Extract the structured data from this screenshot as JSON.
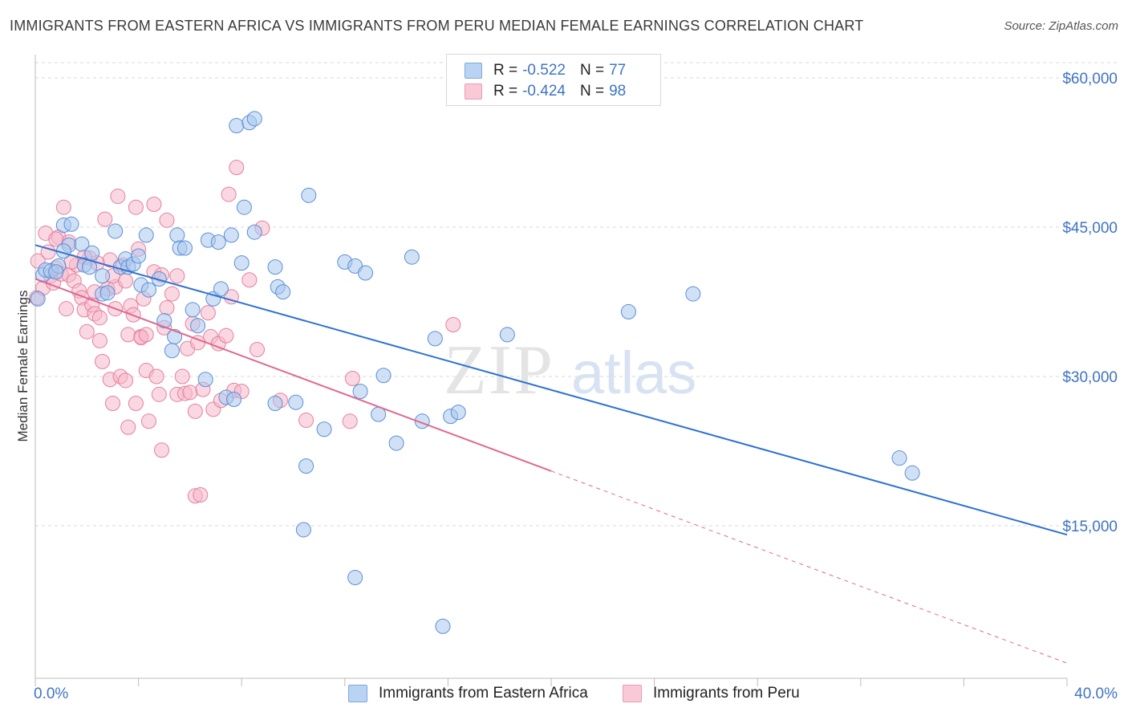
{
  "title": "IMMIGRANTS FROM EASTERN AFRICA VS IMMIGRANTS FROM PERU MEDIAN FEMALE EARNINGS CORRELATION CHART",
  "source": "Source: ZipAtlas.com",
  "watermark": {
    "zip": "ZIP",
    "atlas": "atlas"
  },
  "legend": {
    "series1": {
      "r_label": "R =",
      "r_value": "-0.522",
      "n_label": "N =",
      "n_value": "77"
    },
    "series2": {
      "r_label": "R =",
      "r_value": "-0.424",
      "n_label": "N =",
      "n_value": "98"
    }
  },
  "colors": {
    "series1_fill": "#a9c8ee",
    "series1_stroke": "#5b8fd6",
    "series1_line": "#2e72d2",
    "series2_fill": "#f6b8cb",
    "series2_stroke": "#e57fa0",
    "series2_line": "#e06890",
    "axis_text": "#3f74c4",
    "grid": "#d9d9d9"
  },
  "chart_data": {
    "type": "scatter",
    "ylabel": "Median Female Earnings",
    "xlim": [
      0,
      40
    ],
    "ylim": [
      0,
      60000
    ],
    "x_tick_labels": [
      "0.0%",
      "40.0%"
    ],
    "y_ticks": [
      {
        "value": 15000,
        "label": "$15,000"
      },
      {
        "value": 30000,
        "label": "$30,000"
      },
      {
        "value": 45000,
        "label": "$45,000"
      },
      {
        "value": 60000,
        "label": "$60,000"
      }
    ],
    "grid": true,
    "legend_position": "top-center",
    "series": [
      {
        "name": "Immigrants from Eastern Africa",
        "trend": {
          "x0": 0,
          "y0": 43200,
          "x1": 40,
          "y1": 14100
        },
        "points": [
          [
            0.1,
            37800
          ],
          [
            0.3,
            40200
          ],
          [
            0.4,
            40700
          ],
          [
            0.6,
            40600
          ],
          [
            0.9,
            41100
          ],
          [
            0.8,
            40500
          ],
          [
            1.1,
            45200
          ],
          [
            1.4,
            45300
          ],
          [
            1.3,
            43200
          ],
          [
            1.1,
            42600
          ],
          [
            1.8,
            43300
          ],
          [
            1.9,
            41200
          ],
          [
            2.2,
            42400
          ],
          [
            2.1,
            41000
          ],
          [
            2.6,
            38300
          ],
          [
            2.6,
            40100
          ],
          [
            2.8,
            38400
          ],
          [
            3.1,
            44600
          ],
          [
            3.3,
            41000
          ],
          [
            3.5,
            41800
          ],
          [
            3.6,
            41000
          ],
          [
            3.8,
            41300
          ],
          [
            4.0,
            42100
          ],
          [
            4.1,
            39200
          ],
          [
            4.3,
            44200
          ],
          [
            4.4,
            38700
          ],
          [
            4.8,
            39800
          ],
          [
            5.0,
            35600
          ],
          [
            5.3,
            32600
          ],
          [
            5.4,
            34000
          ],
          [
            5.5,
            44200
          ],
          [
            5.6,
            42900
          ],
          [
            5.8,
            42900
          ],
          [
            6.1,
            36700
          ],
          [
            6.3,
            35100
          ],
          [
            6.6,
            29700
          ],
          [
            6.7,
            43700
          ],
          [
            6.9,
            37800
          ],
          [
            7.1,
            43500
          ],
          [
            7.2,
            38800
          ],
          [
            7.4,
            27900
          ],
          [
            7.6,
            44200
          ],
          [
            7.7,
            27700
          ],
          [
            7.8,
            55200
          ],
          [
            8.0,
            41400
          ],
          [
            8.1,
            47000
          ],
          [
            8.3,
            55500
          ],
          [
            8.5,
            55900
          ],
          [
            8.5,
            44500
          ],
          [
            9.3,
            41000
          ],
          [
            9.3,
            27300
          ],
          [
            9.4,
            39000
          ],
          [
            9.6,
            38500
          ],
          [
            10.1,
            27400
          ],
          [
            10.4,
            14600
          ],
          [
            10.5,
            21000
          ],
          [
            10.6,
            48200
          ],
          [
            11.2,
            24700
          ],
          [
            12.0,
            41500
          ],
          [
            12.4,
            41100
          ],
          [
            12.4,
            9800
          ],
          [
            12.6,
            28500
          ],
          [
            12.8,
            40400
          ],
          [
            13.3,
            26200
          ],
          [
            13.5,
            30100
          ],
          [
            14.0,
            23300
          ],
          [
            15.0,
            25500
          ],
          [
            15.5,
            33800
          ],
          [
            15.8,
            4900
          ],
          [
            16.1,
            26000
          ],
          [
            16.4,
            26400
          ],
          [
            18.3,
            34200
          ],
          [
            23.0,
            36500
          ],
          [
            25.5,
            38300
          ],
          [
            33.5,
            21800
          ],
          [
            34.0,
            20300
          ],
          [
            14.6,
            42000
          ]
        ]
      },
      {
        "name": "Immigrants from Peru",
        "trend": {
          "x0": 0,
          "y0": 39800,
          "x1": 20,
          "y1": 20500,
          "dash_x1": 40,
          "dash_y1": 1200
        },
        "points": [
          [
            0.05,
            37900
          ],
          [
            0.1,
            41600
          ],
          [
            0.3,
            38900
          ],
          [
            0.4,
            44400
          ],
          [
            0.5,
            42500
          ],
          [
            0.6,
            40100
          ],
          [
            0.7,
            39400
          ],
          [
            0.8,
            40900
          ],
          [
            0.9,
            44000
          ],
          [
            1.0,
            40300
          ],
          [
            1.1,
            47000
          ],
          [
            1.2,
            36800
          ],
          [
            1.3,
            43500
          ],
          [
            1.3,
            40200
          ],
          [
            1.5,
            39600
          ],
          [
            1.6,
            41200
          ],
          [
            1.7,
            38600
          ],
          [
            1.8,
            37900
          ],
          [
            1.9,
            36700
          ],
          [
            2.0,
            34500
          ],
          [
            2.1,
            41900
          ],
          [
            2.2,
            37200
          ],
          [
            2.3,
            38500
          ],
          [
            2.3,
            36300
          ],
          [
            2.5,
            33600
          ],
          [
            2.5,
            35900
          ],
          [
            2.6,
            31500
          ],
          [
            2.7,
            45800
          ],
          [
            2.8,
            38800
          ],
          [
            2.9,
            29700
          ],
          [
            2.9,
            41700
          ],
          [
            3.0,
            27300
          ],
          [
            3.1,
            39000
          ],
          [
            3.1,
            36800
          ],
          [
            3.2,
            48100
          ],
          [
            3.3,
            30000
          ],
          [
            3.4,
            41200
          ],
          [
            3.5,
            29600
          ],
          [
            3.5,
            39600
          ],
          [
            3.6,
            34200
          ],
          [
            3.6,
            24900
          ],
          [
            3.7,
            37100
          ],
          [
            3.8,
            36200
          ],
          [
            3.9,
            27300
          ],
          [
            3.9,
            47000
          ],
          [
            4.0,
            42800
          ],
          [
            4.1,
            34000
          ],
          [
            4.1,
            33900
          ],
          [
            4.2,
            37800
          ],
          [
            4.3,
            34200
          ],
          [
            4.3,
            30600
          ],
          [
            4.4,
            25500
          ],
          [
            4.6,
            40500
          ],
          [
            4.6,
            47300
          ],
          [
            4.7,
            30000
          ],
          [
            4.8,
            28200
          ],
          [
            4.9,
            22600
          ],
          [
            4.9,
            40200
          ],
          [
            5.0,
            34900
          ],
          [
            5.1,
            45700
          ],
          [
            5.1,
            36900
          ],
          [
            5.3,
            38300
          ],
          [
            5.5,
            28200
          ],
          [
            5.5,
            40100
          ],
          [
            5.7,
            30000
          ],
          [
            5.8,
            28300
          ],
          [
            5.9,
            32800
          ],
          [
            6.0,
            28400
          ],
          [
            6.1,
            35300
          ],
          [
            6.2,
            26500
          ],
          [
            6.3,
            33400
          ],
          [
            6.2,
            18000
          ],
          [
            6.4,
            18100
          ],
          [
            6.5,
            28700
          ],
          [
            6.7,
            36400
          ],
          [
            6.8,
            34000
          ],
          [
            6.9,
            26700
          ],
          [
            7.1,
            33300
          ],
          [
            7.2,
            27600
          ],
          [
            7.4,
            34100
          ],
          [
            7.5,
            48300
          ],
          [
            7.6,
            38000
          ],
          [
            7.7,
            28600
          ],
          [
            7.8,
            51000
          ],
          [
            8.0,
            28500
          ],
          [
            8.3,
            39700
          ],
          [
            8.6,
            32700
          ],
          [
            8.8,
            44900
          ],
          [
            9.5,
            27600
          ],
          [
            10.5,
            25600
          ],
          [
            12.2,
            25500
          ],
          [
            12.3,
            29800
          ],
          [
            16.2,
            35200
          ],
          [
            1.9,
            42000
          ],
          [
            1.4,
            41500
          ],
          [
            0.8,
            43800
          ],
          [
            2.4,
            41400
          ],
          [
            3.0,
            40100
          ]
        ]
      }
    ]
  },
  "bottom_legend": {
    "series1": "Immigrants from Eastern Africa",
    "series2": "Immigrants from Peru"
  }
}
